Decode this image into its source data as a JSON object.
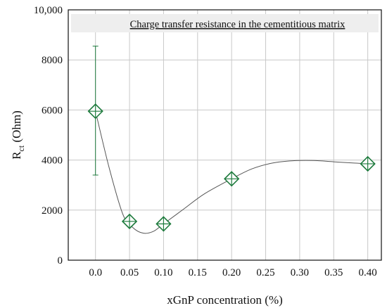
{
  "chart_data": {
    "type": "scatter",
    "xlabel": "xGnP concentration (%)",
    "ylabel": {
      "main": "R",
      "subscript": "ct",
      "unit": " (Ohm)"
    },
    "annotation": "Charge transfer resistance in the cementitious matrix",
    "xlim": [
      -0.04,
      0.42
    ],
    "ylim": [
      0,
      10000
    ],
    "x_ticks": [
      "0.0",
      "0.05",
      "0.10",
      "0.15",
      "0.20",
      "0.25",
      "0.30",
      "0.35",
      "0.40"
    ],
    "x_tick_values": [
      0.0,
      0.05,
      0.1,
      0.15,
      0.2,
      0.25,
      0.3,
      0.35,
      0.4
    ],
    "y_ticks": [
      "0",
      "2000",
      "4000",
      "6000",
      "8000",
      "10,000"
    ],
    "y_tick_values": [
      0,
      2000,
      4000,
      6000,
      8000,
      10000
    ],
    "grid": true,
    "points": [
      {
        "x": 0.0,
        "y": 5950,
        "err_low": 3400,
        "err_high": 8550
      },
      {
        "x": 0.05,
        "y": 1550
      },
      {
        "x": 0.1,
        "y": 1450
      },
      {
        "x": 0.2,
        "y": 3250
      },
      {
        "x": 0.4,
        "y": 3850
      }
    ],
    "curve": [
      [
        0.0,
        5950
      ],
      [
        0.02,
        3700
      ],
      [
        0.04,
        1850
      ],
      [
        0.055,
        1300
      ],
      [
        0.07,
        1080
      ],
      [
        0.085,
        1150
      ],
      [
        0.1,
        1450
      ],
      [
        0.13,
        2050
      ],
      [
        0.16,
        2650
      ],
      [
        0.2,
        3250
      ],
      [
        0.23,
        3650
      ],
      [
        0.26,
        3880
      ],
      [
        0.29,
        3970
      ],
      [
        0.32,
        3980
      ],
      [
        0.35,
        3930
      ],
      [
        0.38,
        3880
      ],
      [
        0.4,
        3850
      ]
    ],
    "colors": {
      "marker": "#1d7a3c",
      "curve": "#555555",
      "grid": "#c8c8c8",
      "annotation_bg": "#eeeeee"
    }
  }
}
